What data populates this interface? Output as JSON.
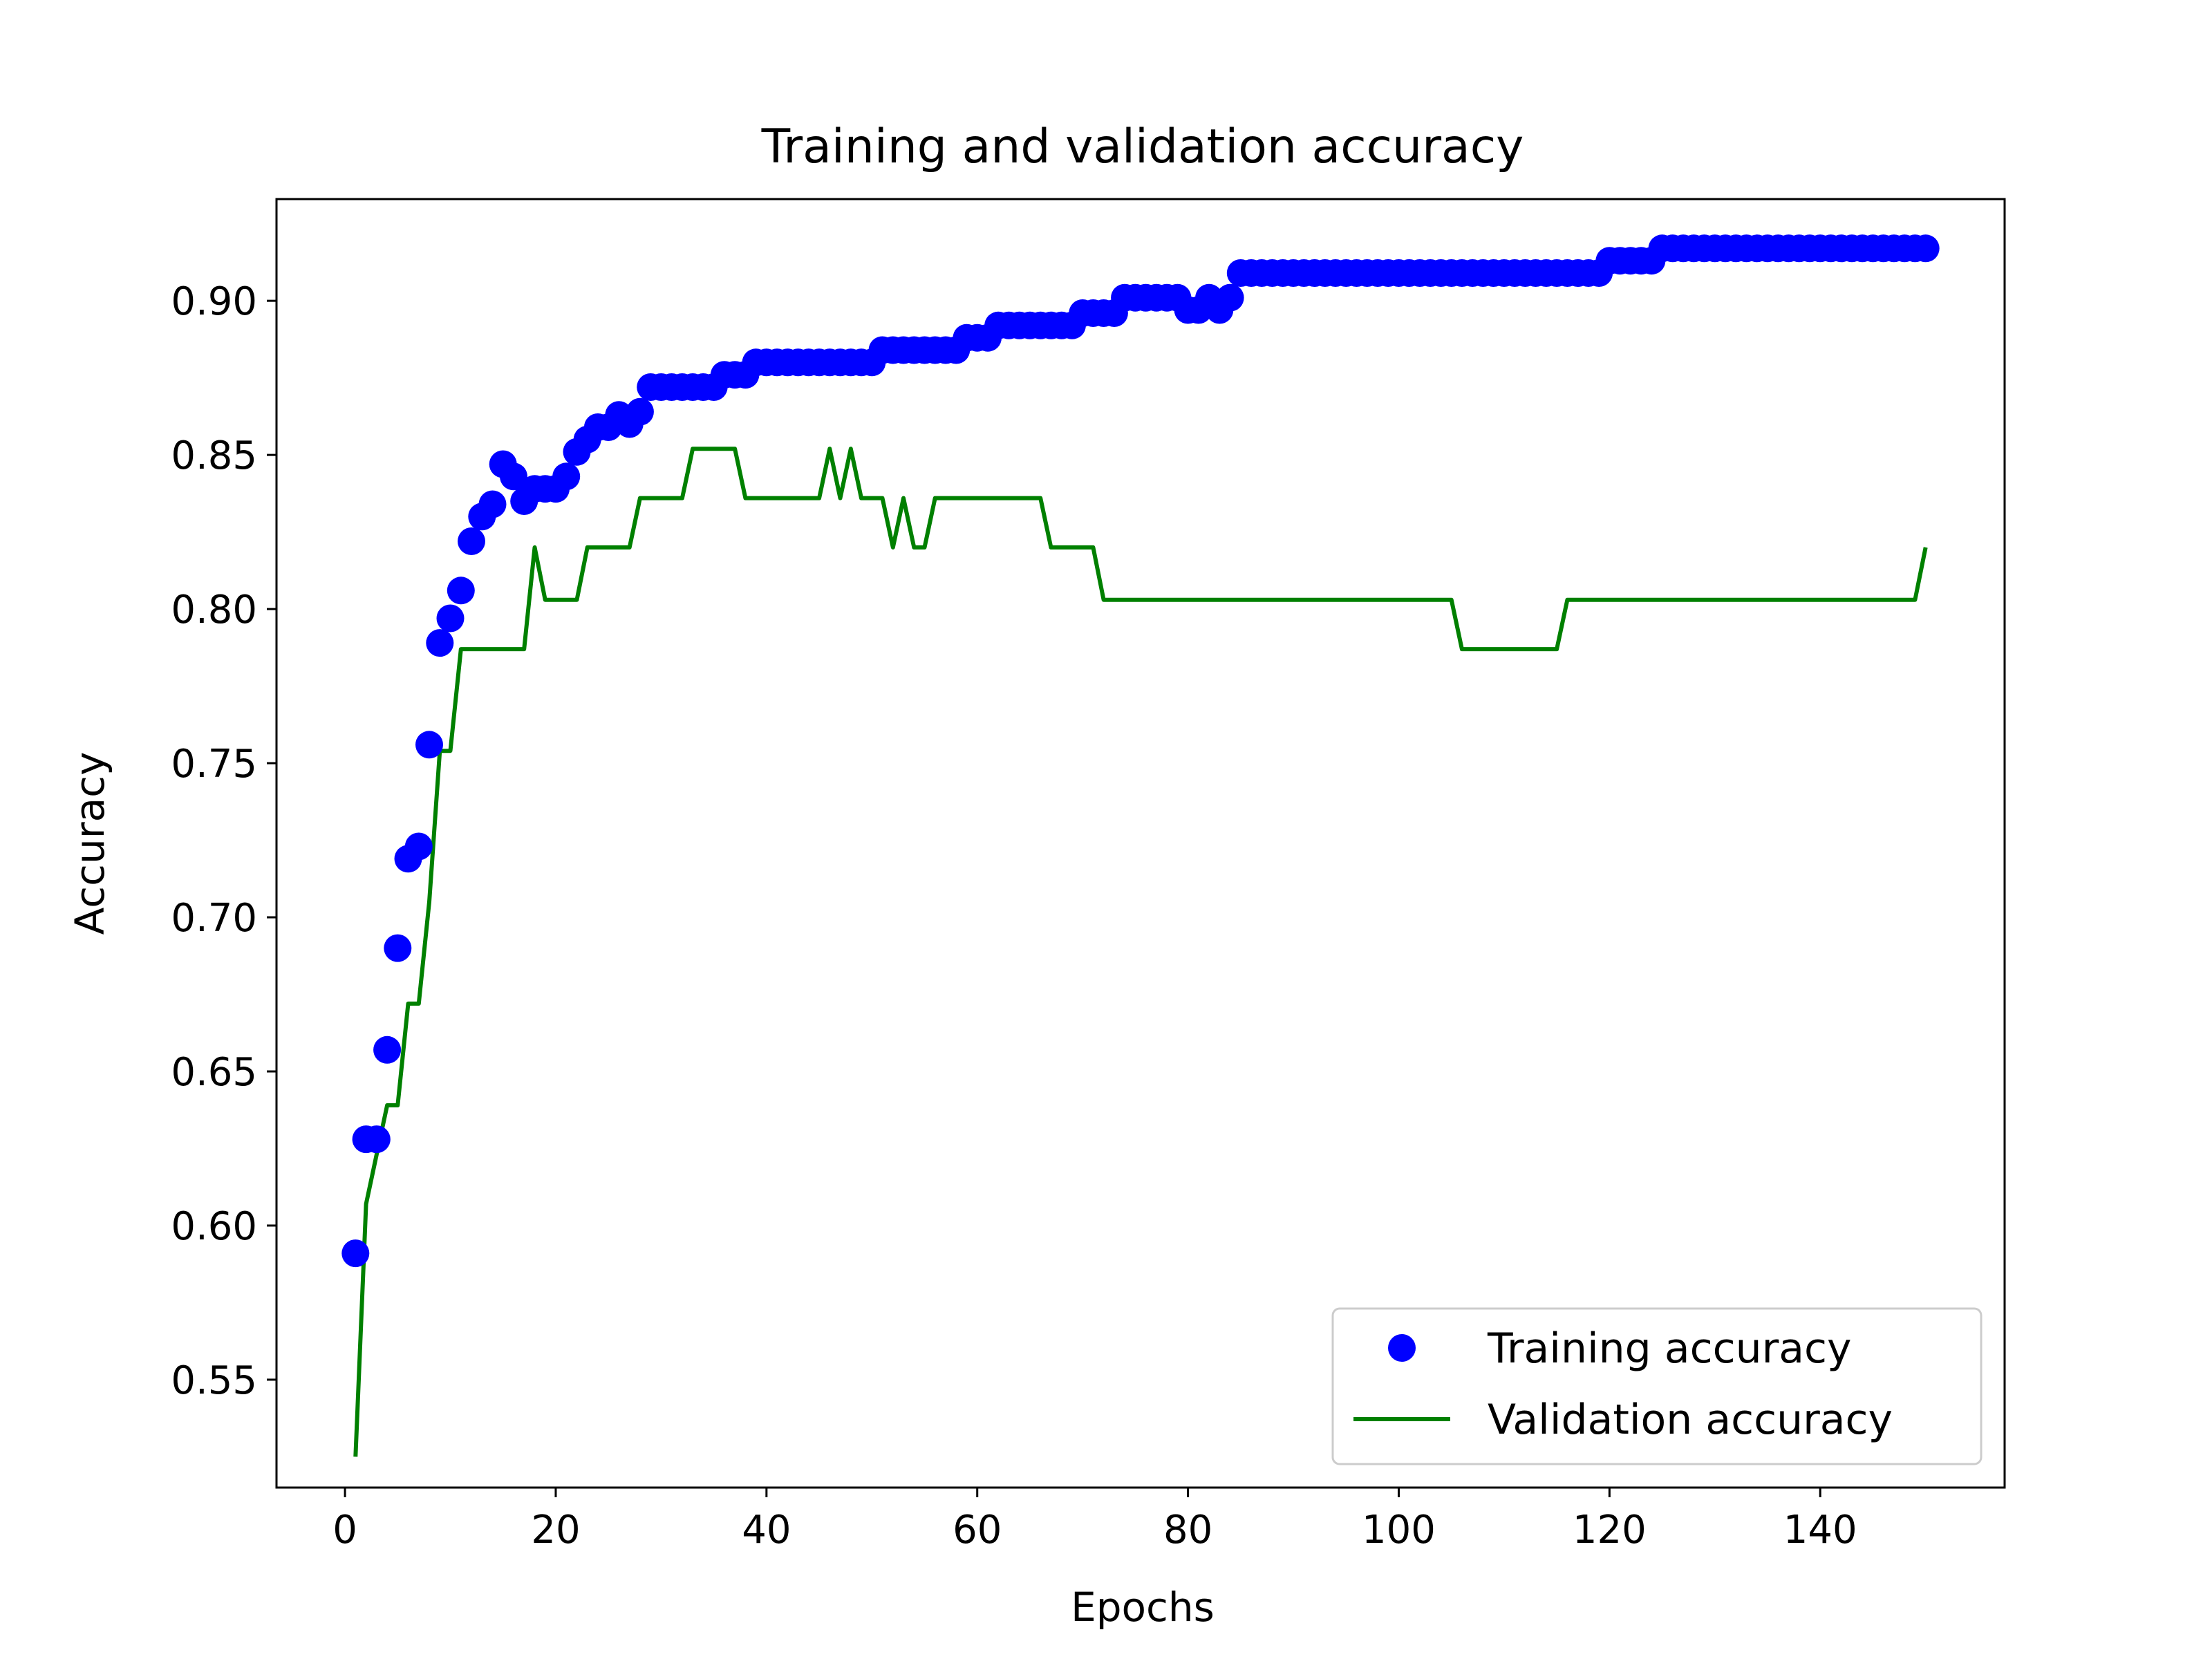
{
  "chart_data": {
    "type": "line",
    "title": "Training and validation accuracy",
    "xlabel": "Epochs",
    "ylabel": "Accuracy",
    "xlim": [
      -6.5,
      157.5
    ],
    "ylim": [
      0.515,
      0.933
    ],
    "xticks": [
      0,
      20,
      40,
      60,
      80,
      100,
      120,
      140
    ],
    "xtick_labels": [
      "0",
      "20",
      "40",
      "60",
      "80",
      "100",
      "120",
      "140"
    ],
    "yticks": [
      0.55,
      0.6,
      0.65,
      0.7,
      0.75,
      0.8,
      0.85,
      0.9
    ],
    "ytick_labels": [
      "0.55",
      "0.60",
      "0.65",
      "0.70",
      "0.75",
      "0.80",
      "0.85",
      "0.90"
    ],
    "grid": false,
    "legend_position": "lower-right",
    "series": [
      {
        "name": "Training accuracy",
        "style": "markers",
        "color": "#0000ff",
        "x": [
          1,
          2,
          3,
          4,
          5,
          6,
          7,
          8,
          9,
          10,
          11,
          12,
          13,
          14,
          15,
          16,
          17,
          18,
          19,
          20,
          21,
          22,
          23,
          24,
          25,
          26,
          27,
          28,
          29,
          30,
          31,
          32,
          33,
          34,
          35,
          36,
          37,
          38,
          39,
          40,
          41,
          42,
          43,
          44,
          45,
          46,
          47,
          48,
          49,
          50,
          51,
          52,
          53,
          54,
          55,
          56,
          57,
          58,
          59,
          60,
          61,
          62,
          63,
          64,
          65,
          66,
          67,
          68,
          69,
          70,
          71,
          72,
          73,
          74,
          75,
          76,
          77,
          78,
          79,
          80,
          81,
          82,
          83,
          84,
          85,
          86,
          87,
          88,
          89,
          90,
          91,
          92,
          93,
          94,
          95,
          96,
          97,
          98,
          99,
          100,
          101,
          102,
          103,
          104,
          105,
          106,
          107,
          108,
          109,
          110,
          111,
          112,
          113,
          114,
          115,
          116,
          117,
          118,
          119,
          120,
          121,
          122,
          123,
          124,
          125,
          126,
          127,
          128,
          129,
          130,
          131,
          132,
          133,
          134,
          135,
          136,
          137,
          138,
          139,
          140,
          141,
          142,
          143,
          144,
          145,
          146,
          147,
          148,
          149,
          150
        ],
        "values": [
          0.591,
          0.628,
          0.628,
          0.657,
          0.69,
          0.719,
          0.723,
          0.756,
          0.789,
          0.797,
          0.806,
          0.822,
          0.83,
          0.834,
          0.847,
          0.843,
          0.835,
          0.839,
          0.839,
          0.839,
          0.843,
          0.851,
          0.855,
          0.859,
          0.859,
          0.863,
          0.86,
          0.864,
          0.872,
          0.872,
          0.872,
          0.872,
          0.872,
          0.872,
          0.872,
          0.876,
          0.876,
          0.876,
          0.88,
          0.88,
          0.88,
          0.88,
          0.88,
          0.88,
          0.88,
          0.88,
          0.88,
          0.88,
          0.88,
          0.88,
          0.884,
          0.884,
          0.884,
          0.884,
          0.884,
          0.884,
          0.884,
          0.884,
          0.888,
          0.888,
          0.888,
          0.892,
          0.892,
          0.892,
          0.892,
          0.892,
          0.892,
          0.892,
          0.892,
          0.896,
          0.896,
          0.896,
          0.896,
          0.901,
          0.901,
          0.901,
          0.901,
          0.901,
          0.901,
          0.897,
          0.897,
          0.901,
          0.897,
          0.901,
          0.909,
          0.909,
          0.909,
          0.909,
          0.909,
          0.909,
          0.909,
          0.909,
          0.909,
          0.909,
          0.909,
          0.909,
          0.909,
          0.909,
          0.909,
          0.909,
          0.909,
          0.909,
          0.909,
          0.909,
          0.909,
          0.909,
          0.909,
          0.909,
          0.909,
          0.909,
          0.909,
          0.909,
          0.909,
          0.909,
          0.909,
          0.909,
          0.909,
          0.909,
          0.909,
          0.913,
          0.913,
          0.913,
          0.913,
          0.913,
          0.917,
          0.917,
          0.917,
          0.917,
          0.917,
          0.917,
          0.917,
          0.917,
          0.917,
          0.917,
          0.917,
          0.917,
          0.917,
          0.917,
          0.917,
          0.917,
          0.917,
          0.917,
          0.917,
          0.917,
          0.917,
          0.917,
          0.917,
          0.917,
          0.917,
          0.917
        ]
      },
      {
        "name": "Validation accuracy",
        "style": "line",
        "color": "#008000",
        "x": [
          1,
          2,
          3,
          4,
          5,
          6,
          7,
          8,
          9,
          10,
          11,
          12,
          13,
          14,
          15,
          16,
          17,
          18,
          19,
          20,
          21,
          22,
          23,
          24,
          25,
          26,
          27,
          28,
          29,
          30,
          31,
          32,
          33,
          34,
          35,
          36,
          37,
          38,
          39,
          40,
          41,
          42,
          43,
          44,
          45,
          46,
          47,
          48,
          49,
          50,
          51,
          52,
          53,
          54,
          55,
          56,
          57,
          58,
          59,
          60,
          61,
          62,
          63,
          64,
          65,
          66,
          67,
          68,
          69,
          70,
          71,
          72,
          73,
          74,
          75,
          76,
          77,
          78,
          79,
          80,
          81,
          82,
          83,
          84,
          85,
          86,
          87,
          88,
          89,
          90,
          91,
          92,
          93,
          94,
          95,
          96,
          97,
          98,
          99,
          100,
          101,
          102,
          103,
          104,
          105,
          106,
          107,
          108,
          109,
          110,
          111,
          112,
          113,
          114,
          115,
          116,
          117,
          118,
          119,
          120,
          121,
          122,
          123,
          124,
          125,
          126,
          127,
          128,
          129,
          130,
          131,
          132,
          133,
          134,
          135,
          136,
          137,
          138,
          139,
          140,
          141,
          142,
          143,
          144,
          145,
          146,
          147,
          148,
          149,
          150
        ],
        "values": [
          0.525,
          0.607,
          0.623,
          0.639,
          0.639,
          0.672,
          0.672,
          0.705,
          0.754,
          0.754,
          0.787,
          0.787,
          0.787,
          0.787,
          0.787,
          0.787,
          0.787,
          0.82,
          0.803,
          0.803,
          0.803,
          0.803,
          0.82,
          0.82,
          0.82,
          0.82,
          0.82,
          0.836,
          0.836,
          0.836,
          0.836,
          0.836,
          0.852,
          0.852,
          0.852,
          0.852,
          0.852,
          0.836,
          0.836,
          0.836,
          0.836,
          0.836,
          0.836,
          0.836,
          0.836,
          0.852,
          0.836,
          0.852,
          0.836,
          0.836,
          0.836,
          0.82,
          0.836,
          0.82,
          0.82,
          0.836,
          0.836,
          0.836,
          0.836,
          0.836,
          0.836,
          0.836,
          0.836,
          0.836,
          0.836,
          0.836,
          0.82,
          0.82,
          0.82,
          0.82,
          0.82,
          0.803,
          0.803,
          0.803,
          0.803,
          0.803,
          0.803,
          0.803,
          0.803,
          0.803,
          0.803,
          0.803,
          0.803,
          0.803,
          0.803,
          0.803,
          0.803,
          0.803,
          0.803,
          0.803,
          0.803,
          0.803,
          0.803,
          0.803,
          0.803,
          0.803,
          0.803,
          0.803,
          0.803,
          0.803,
          0.803,
          0.803,
          0.803,
          0.803,
          0.803,
          0.787,
          0.787,
          0.787,
          0.787,
          0.787,
          0.787,
          0.787,
          0.787,
          0.787,
          0.787,
          0.803,
          0.803,
          0.803,
          0.803,
          0.803,
          0.803,
          0.803,
          0.803,
          0.803,
          0.803,
          0.803,
          0.803,
          0.803,
          0.803,
          0.803,
          0.803,
          0.803,
          0.803,
          0.803,
          0.803,
          0.803,
          0.803,
          0.803,
          0.803,
          0.803,
          0.803,
          0.803,
          0.803,
          0.803,
          0.803,
          0.803,
          0.803,
          0.803,
          0.803,
          0.82
        ]
      }
    ]
  }
}
